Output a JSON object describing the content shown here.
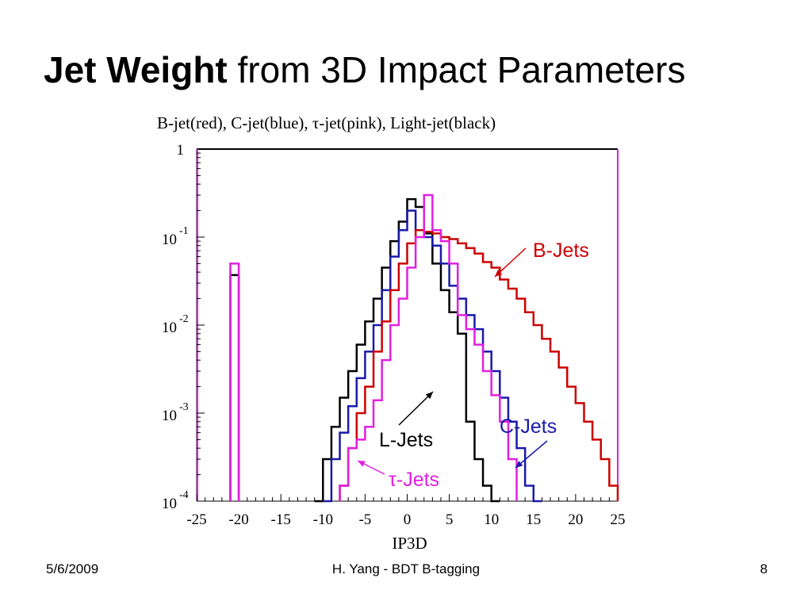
{
  "slide": {
    "title_bold": "Jet Weight",
    "title_rest": "from 3D Impact Parameters",
    "footer_date": "5/6/2009",
    "footer_center": "H. Yang - BDT B-tagging",
    "footer_page": "8"
  },
  "chart_data": {
    "type": "line",
    "subtype": "histogram (step)",
    "title": "B-jet(red), C-jet(blue), τ-jet(pink), Light-jet(black)",
    "xlabel": "IP3D",
    "ylabel": "",
    "xlim": [
      -25,
      25
    ],
    "ylim": [
      0.0001,
      1
    ],
    "yscale": "log",
    "grid": false,
    "x_ticks": [
      "-25",
      "-20",
      "-15",
      "-10",
      "-5",
      "0",
      "5",
      "10",
      "15",
      "20",
      "25"
    ],
    "y_ticks": [
      {
        "value": 1,
        "base": "1",
        "exp": ""
      },
      {
        "value": 0.1,
        "base": "10",
        "exp": "-1"
      },
      {
        "value": 0.01,
        "base": "10",
        "exp": "-2"
      },
      {
        "value": 0.001,
        "base": "10",
        "exp": "-3"
      },
      {
        "value": 0.0001,
        "base": "10",
        "exp": "-4"
      }
    ],
    "bin_width": 1,
    "annotations": [
      {
        "text": "B-Jets",
        "color": "#cc0000",
        "series": "B-jet",
        "x": 8.6,
        "y": 0.023
      },
      {
        "text": "C-Jets",
        "color": "#1a1aaa",
        "series": "C-jet",
        "x": 12.8,
        "y": 0.00033
      },
      {
        "text": "L-Jets",
        "color": "#000000",
        "series": "Light-jet",
        "x": 2.6,
        "y": 0.0011
      },
      {
        "text": "τ-Jets",
        "color": "#e020e0",
        "series": "τ-jet",
        "x": -5.7,
        "y": 0.00052
      }
    ],
    "series": [
      {
        "name": "Light-jet",
        "color": "#000000",
        "spike": {
          "x0": -21,
          "x1": -20,
          "y": 0.037
        },
        "x_start": -11,
        "values": [
          0.0001,
          0.0003,
          0.0007,
          0.0015,
          0.003,
          0.006,
          0.011,
          0.02,
          0.045,
          0.09,
          0.15,
          0.27,
          0.22,
          0.11,
          0.05,
          0.025,
          0.014,
          0.008,
          0.0008,
          0.0003,
          0.00015,
          0.0001
        ]
      },
      {
        "name": "C-jet",
        "color": "#1a1aaa",
        "x_start": -10,
        "values": [
          0.0001,
          0.0003,
          0.0006,
          0.0012,
          0.0025,
          0.005,
          0.01,
          0.025,
          0.06,
          0.12,
          0.2,
          0.12,
          0.1,
          0.08,
          0.05,
          0.028,
          0.02,
          0.013,
          0.009,
          0.005,
          0.003,
          0.0015,
          0.0008,
          0.0004,
          0.00015,
          0.0001
        ]
      },
      {
        "name": "B-jet",
        "color": "#cc0000",
        "x_start": -8,
        "values": [
          0.00015,
          0.0004,
          0.001,
          0.002,
          0.005,
          0.011,
          0.025,
          0.05,
          0.085,
          0.12,
          0.115,
          0.11,
          0.1,
          0.095,
          0.085,
          0.075,
          0.065,
          0.052,
          0.045,
          0.033,
          0.026,
          0.02,
          0.014,
          0.01,
          0.007,
          0.005,
          0.0033,
          0.002,
          0.0013,
          0.0008,
          0.0005,
          0.0003,
          0.00015
        ]
      },
      {
        "name": "τ-jet",
        "color": "#e020e0",
        "spike": {
          "x0": -21,
          "x1": -20,
          "y": 0.05
        },
        "x_start": -8,
        "values": [
          0.00015,
          0.0004,
          0.0005,
          0.0007,
          0.0014,
          0.004,
          0.01,
          0.02,
          0.045,
          0.1,
          0.3,
          0.12,
          0.09,
          0.05,
          0.013,
          0.009,
          0.006,
          0.003,
          0.0016,
          0.0008,
          0.0003
        ]
      }
    ]
  }
}
